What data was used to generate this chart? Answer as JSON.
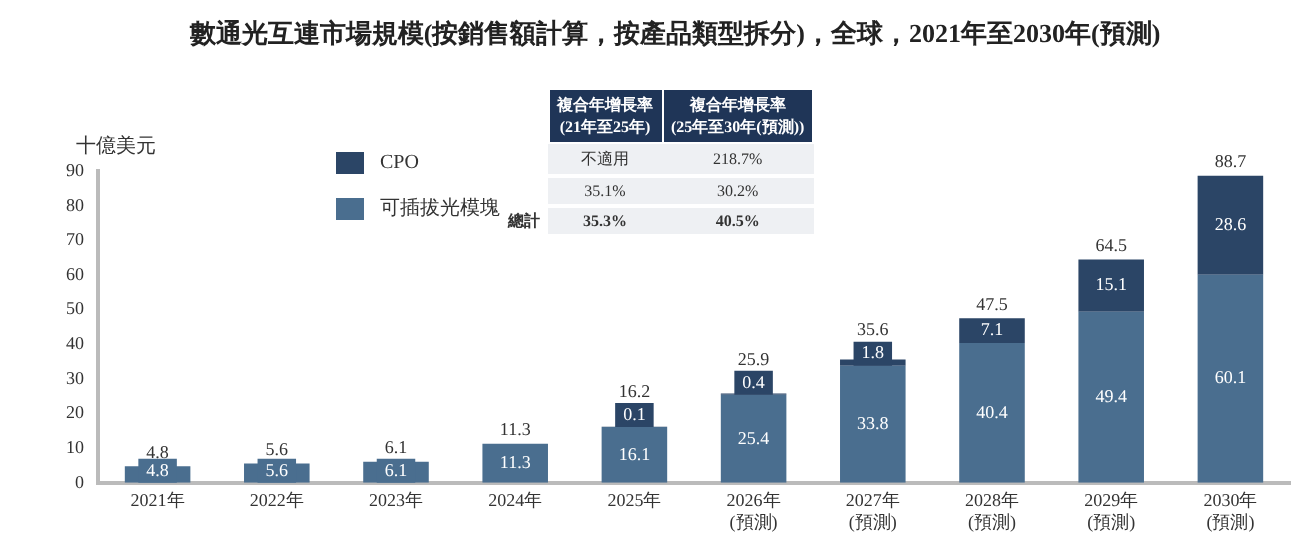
{
  "chart_data": {
    "type": "bar",
    "title": "數通光互連市場規模(按銷售額計算，按產品類型拆分)，全球，2021年至2030年(預測)",
    "ylabel": "十億美元",
    "categories": [
      "2021年",
      "2022年",
      "2023年",
      "2024年",
      "2025年",
      "2026年\n(預測)",
      "2027年\n(預測)",
      "2028年\n(預測)",
      "2029年\n(預測)",
      "2030年\n(預測)"
    ],
    "stacked": true,
    "series": [
      {
        "name": "可插拔光模塊",
        "color": "#4a6e8f",
        "values": [
          4.8,
          5.6,
          6.1,
          11.3,
          16.1,
          25.4,
          33.8,
          40.4,
          49.4,
          60.1
        ],
        "value_labels": [
          "4.8",
          "5.6",
          "6.1",
          "11.3",
          "16.1",
          "25.4",
          "33.8",
          "40.4",
          "49.4",
          "60.1"
        ]
      },
      {
        "name": "CPO",
        "color": "#2b4566",
        "values": [
          null,
          null,
          null,
          null,
          0.1,
          0.4,
          1.8,
          7.1,
          15.1,
          28.6
        ],
        "value_labels": [
          null,
          null,
          null,
          null,
          "0.1",
          "0.4",
          "1.8",
          "7.1",
          "15.1",
          "28.6"
        ]
      }
    ],
    "totals": [
      "4.8",
      "5.6",
      "6.1",
      "11.3",
      "16.2",
      "25.9",
      "35.6",
      "47.5",
      "64.5",
      "88.7"
    ],
    "ylim": [
      0,
      90
    ],
    "yticks": [
      0,
      10,
      20,
      30,
      40,
      50,
      60,
      70,
      80,
      90
    ],
    "grid": false,
    "legend": "top left",
    "annotations": [
      "總計",
      "複合年增長率\n(21年至25年)",
      "複合年增長率\n(25年至30年(預測))",
      "不適用",
      "218.7%",
      "35.1%",
      "30.2%",
      "35.3%",
      "40.5%"
    ]
  }
}
